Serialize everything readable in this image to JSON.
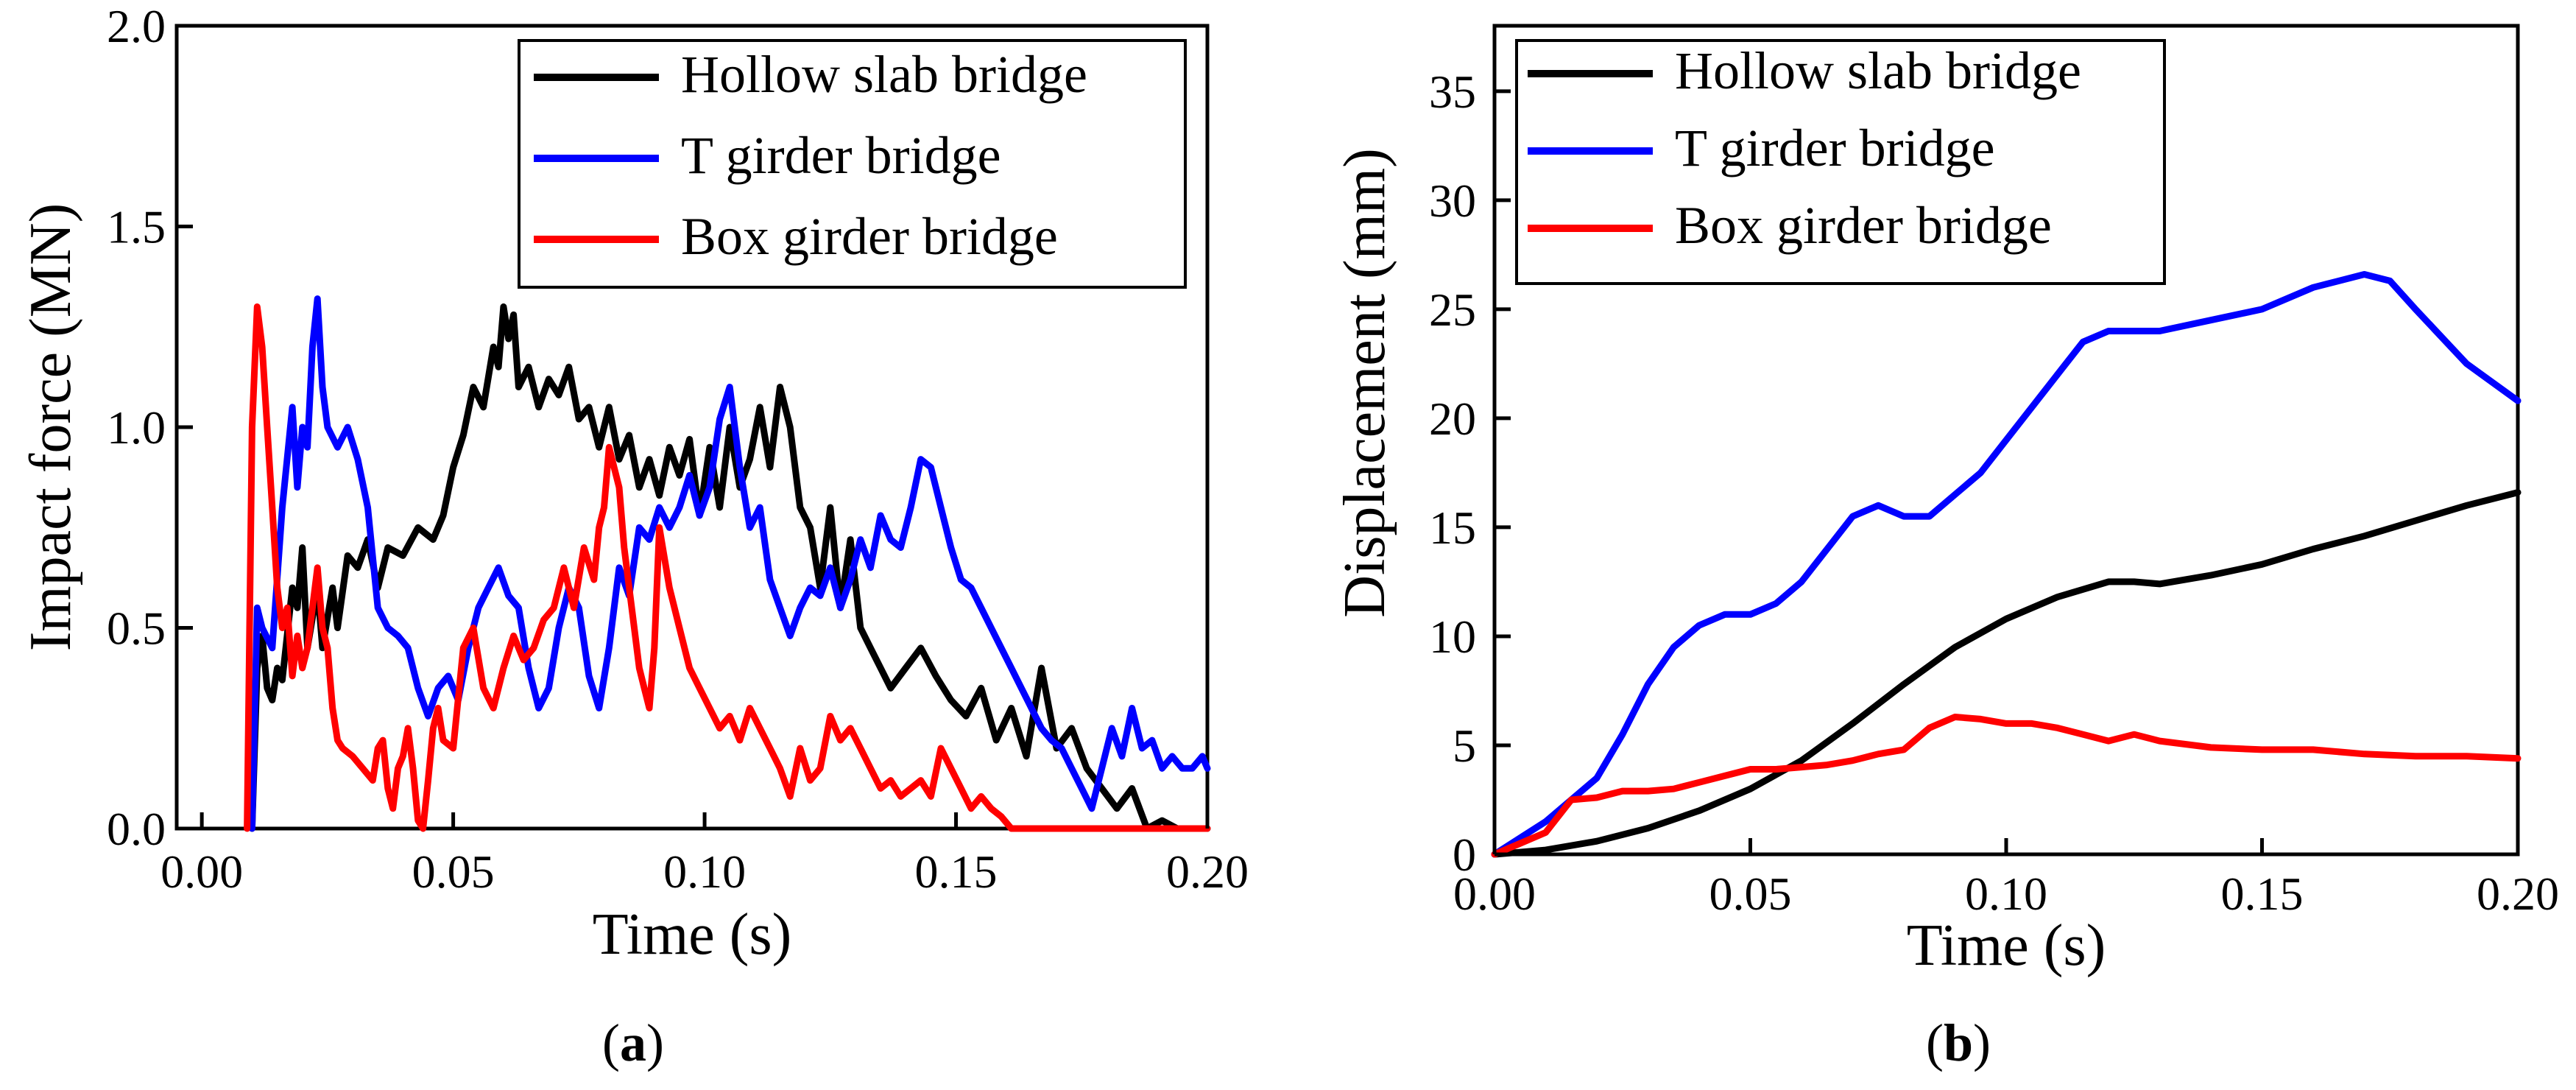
{
  "chart_data": [
    {
      "type": "line",
      "panel_label": "a",
      "xlabel": "Time (s)",
      "ylabel": "Impact force (MN)",
      "xlim": [
        -0.005,
        0.2
      ],
      "ylim": [
        0,
        2.0
      ],
      "xticks": [
        0.0,
        0.05,
        0.1,
        0.15,
        0.2
      ],
      "xtick_labels": [
        "0.00",
        "0.05",
        "0.10",
        "0.15",
        "0.20"
      ],
      "yticks": [
        0.0,
        0.5,
        1.0,
        1.5,
        2.0
      ],
      "ytick_labels": [
        "0.0",
        "0.5",
        "1.0",
        "1.5",
        "2.0"
      ],
      "legend_position": "top-right",
      "series": [
        {
          "name": "Hollow slab bridge",
          "color": "#000000",
          "x": [
            0.01,
            0.011,
            0.012,
            0.013,
            0.014,
            0.015,
            0.016,
            0.018,
            0.019,
            0.02,
            0.021,
            0.023,
            0.024,
            0.026,
            0.027,
            0.029,
            0.031,
            0.033,
            0.035,
            0.037,
            0.04,
            0.043,
            0.046,
            0.048,
            0.05,
            0.052,
            0.054,
            0.056,
            0.058,
            0.059,
            0.06,
            0.061,
            0.062,
            0.063,
            0.065,
            0.067,
            0.069,
            0.071,
            0.073,
            0.075,
            0.077,
            0.079,
            0.081,
            0.083,
            0.085,
            0.087,
            0.089,
            0.091,
            0.093,
            0.095,
            0.097,
            0.099,
            0.101,
            0.103,
            0.105,
            0.107,
            0.109,
            0.111,
            0.113,
            0.115,
            0.117,
            0.119,
            0.121,
            0.123,
            0.125,
            0.127,
            0.129,
            0.131,
            0.133,
            0.135,
            0.137,
            0.14,
            0.143,
            0.146,
            0.149,
            0.152,
            0.155,
            0.158,
            0.161,
            0.164,
            0.167,
            0.17,
            0.173,
            0.176,
            0.179,
            0.182,
            0.185,
            0.188,
            0.191,
            0.194,
            0.197,
            0.2
          ],
          "values": [
            0.0,
            0.4,
            0.48,
            0.35,
            0.32,
            0.4,
            0.37,
            0.6,
            0.55,
            0.7,
            0.45,
            0.6,
            0.45,
            0.6,
            0.5,
            0.68,
            0.65,
            0.72,
            0.6,
            0.7,
            0.68,
            0.75,
            0.72,
            0.78,
            0.9,
            0.98,
            1.1,
            1.05,
            1.2,
            1.15,
            1.3,
            1.22,
            1.28,
            1.1,
            1.15,
            1.05,
            1.12,
            1.08,
            1.15,
            1.02,
            1.05,
            0.95,
            1.05,
            0.92,
            0.98,
            0.85,
            0.92,
            0.83,
            0.95,
            0.88,
            0.97,
            0.78,
            0.95,
            0.8,
            1.0,
            0.85,
            0.92,
            1.05,
            0.9,
            1.1,
            1.0,
            0.8,
            0.75,
            0.6,
            0.8,
            0.55,
            0.72,
            0.5,
            0.45,
            0.4,
            0.35,
            0.4,
            0.45,
            0.38,
            0.32,
            0.28,
            0.35,
            0.22,
            0.3,
            0.18,
            0.4,
            0.2,
            0.25,
            0.15,
            0.1,
            0.05,
            0.1,
            0.0,
            0.02,
            0.0,
            0.0,
            0.0
          ]
        },
        {
          "name": "T girder bridge",
          "color": "#0000ff",
          "x": [
            0.01,
            0.011,
            0.012,
            0.014,
            0.016,
            0.018,
            0.019,
            0.02,
            0.021,
            0.022,
            0.023,
            0.024,
            0.025,
            0.027,
            0.029,
            0.031,
            0.033,
            0.035,
            0.037,
            0.039,
            0.041,
            0.043,
            0.045,
            0.047,
            0.049,
            0.051,
            0.053,
            0.055,
            0.057,
            0.059,
            0.061,
            0.063,
            0.065,
            0.067,
            0.069,
            0.071,
            0.073,
            0.075,
            0.077,
            0.079,
            0.081,
            0.083,
            0.085,
            0.087,
            0.089,
            0.091,
            0.093,
            0.095,
            0.097,
            0.099,
            0.101,
            0.103,
            0.105,
            0.107,
            0.109,
            0.111,
            0.113,
            0.115,
            0.117,
            0.119,
            0.121,
            0.123,
            0.125,
            0.127,
            0.129,
            0.131,
            0.133,
            0.135,
            0.137,
            0.139,
            0.141,
            0.143,
            0.145,
            0.147,
            0.149,
            0.151,
            0.153,
            0.155,
            0.157,
            0.159,
            0.161,
            0.163,
            0.165,
            0.167,
            0.169,
            0.171,
            0.173,
            0.175,
            0.177,
            0.179,
            0.181,
            0.183,
            0.185,
            0.187,
            0.189,
            0.191,
            0.193,
            0.195,
            0.197,
            0.199,
            0.2
          ],
          "values": [
            0.0,
            0.55,
            0.5,
            0.45,
            0.8,
            1.05,
            0.85,
            1.0,
            0.95,
            1.2,
            1.32,
            1.1,
            1.0,
            0.95,
            1.0,
            0.92,
            0.8,
            0.55,
            0.5,
            0.48,
            0.45,
            0.35,
            0.28,
            0.35,
            0.38,
            0.32,
            0.45,
            0.55,
            0.6,
            0.65,
            0.58,
            0.55,
            0.4,
            0.3,
            0.35,
            0.5,
            0.6,
            0.55,
            0.38,
            0.3,
            0.45,
            0.65,
            0.58,
            0.75,
            0.72,
            0.8,
            0.75,
            0.8,
            0.88,
            0.78,
            0.85,
            1.02,
            1.1,
            0.9,
            0.75,
            0.8,
            0.62,
            0.55,
            0.48,
            0.55,
            0.6,
            0.58,
            0.65,
            0.55,
            0.62,
            0.72,
            0.65,
            0.78,
            0.72,
            0.7,
            0.8,
            0.92,
            0.9,
            0.8,
            0.7,
            0.62,
            0.6,
            0.55,
            0.5,
            0.45,
            0.4,
            0.35,
            0.3,
            0.25,
            0.22,
            0.2,
            0.15,
            0.1,
            0.05,
            0.15,
            0.25,
            0.18,
            0.3,
            0.2,
            0.22,
            0.15,
            0.18,
            0.15,
            0.15,
            0.18,
            0.15
          ]
        },
        {
          "name": "Box girder bridge",
          "color": "#ff0000",
          "x": [
            0.009,
            0.01,
            0.011,
            0.012,
            0.013,
            0.014,
            0.015,
            0.016,
            0.017,
            0.018,
            0.019,
            0.02,
            0.021,
            0.022,
            0.023,
            0.024,
            0.025,
            0.026,
            0.027,
            0.028,
            0.03,
            0.032,
            0.034,
            0.035,
            0.036,
            0.037,
            0.038,
            0.039,
            0.04,
            0.041,
            0.042,
            0.043,
            0.044,
            0.045,
            0.046,
            0.047,
            0.048,
            0.05,
            0.052,
            0.054,
            0.056,
            0.058,
            0.06,
            0.062,
            0.064,
            0.066,
            0.068,
            0.07,
            0.072,
            0.074,
            0.076,
            0.078,
            0.079,
            0.08,
            0.081,
            0.082,
            0.083,
            0.084,
            0.085,
            0.086,
            0.087,
            0.088,
            0.089,
            0.09,
            0.091,
            0.093,
            0.095,
            0.097,
            0.099,
            0.101,
            0.103,
            0.105,
            0.107,
            0.109,
            0.111,
            0.113,
            0.115,
            0.117,
            0.119,
            0.121,
            0.123,
            0.125,
            0.127,
            0.129,
            0.131,
            0.133,
            0.135,
            0.137,
            0.139,
            0.141,
            0.143,
            0.145,
            0.147,
            0.149,
            0.151,
            0.153,
            0.155,
            0.157,
            0.159,
            0.161,
            0.163,
            0.165,
            0.17,
            0.18,
            0.19,
            0.2
          ],
          "values": [
            0.0,
            1.0,
            1.3,
            1.2,
            1.0,
            0.8,
            0.6,
            0.5,
            0.55,
            0.38,
            0.48,
            0.4,
            0.45,
            0.55,
            0.65,
            0.5,
            0.45,
            0.3,
            0.22,
            0.2,
            0.18,
            0.15,
            0.12,
            0.2,
            0.22,
            0.1,
            0.05,
            0.15,
            0.18,
            0.25,
            0.15,
            0.02,
            0.0,
            0.12,
            0.25,
            0.3,
            0.22,
            0.2,
            0.45,
            0.5,
            0.35,
            0.3,
            0.4,
            0.48,
            0.42,
            0.45,
            0.52,
            0.55,
            0.65,
            0.55,
            0.7,
            0.62,
            0.75,
            0.8,
            0.95,
            0.9,
            0.85,
            0.7,
            0.6,
            0.5,
            0.4,
            0.35,
            0.3,
            0.45,
            0.75,
            0.6,
            0.5,
            0.4,
            0.35,
            0.3,
            0.25,
            0.28,
            0.22,
            0.3,
            0.25,
            0.2,
            0.15,
            0.08,
            0.2,
            0.12,
            0.15,
            0.28,
            0.22,
            0.25,
            0.2,
            0.15,
            0.1,
            0.12,
            0.08,
            0.1,
            0.12,
            0.08,
            0.2,
            0.15,
            0.1,
            0.05,
            0.08,
            0.05,
            0.03,
            0.0,
            0.0,
            0.0,
            0.0,
            0.0,
            0.0,
            0.0
          ]
        }
      ]
    },
    {
      "type": "line",
      "panel_label": "b",
      "xlabel": "Time (s)",
      "ylabel": "Displacement (mm)",
      "xlim": [
        0,
        0.2
      ],
      "ylim": [
        0,
        38
      ],
      "xticks": [
        0.0,
        0.05,
        0.1,
        0.15,
        0.2
      ],
      "xtick_labels": [
        "0.00",
        "0.05",
        "0.10",
        "0.15",
        "0.20"
      ],
      "yticks": [
        0,
        5,
        10,
        15,
        20,
        25,
        30,
        35
      ],
      "ytick_labels": [
        "0",
        "5",
        "10",
        "15",
        "20",
        "25",
        "30",
        "35"
      ],
      "legend_position": "top-right",
      "series": [
        {
          "name": "Hollow slab bridge",
          "color": "#000000",
          "x": [
            0.0,
            0.01,
            0.02,
            0.03,
            0.04,
            0.05,
            0.06,
            0.07,
            0.08,
            0.09,
            0.1,
            0.11,
            0.12,
            0.125,
            0.13,
            0.14,
            0.15,
            0.16,
            0.17,
            0.18,
            0.19,
            0.2
          ],
          "values": [
            0.0,
            0.2,
            0.6,
            1.2,
            2.0,
            3.0,
            4.3,
            6.0,
            7.8,
            9.5,
            10.8,
            11.8,
            12.5,
            12.5,
            12.4,
            12.8,
            13.3,
            14.0,
            14.6,
            15.3,
            16.0,
            16.6
          ]
        },
        {
          "name": "T girder bridge",
          "color": "#0000ff",
          "x": [
            0.0,
            0.01,
            0.02,
            0.025,
            0.03,
            0.035,
            0.04,
            0.045,
            0.05,
            0.055,
            0.06,
            0.065,
            0.07,
            0.075,
            0.08,
            0.085,
            0.09,
            0.095,
            0.1,
            0.11,
            0.115,
            0.12,
            0.125,
            0.13,
            0.14,
            0.15,
            0.16,
            0.17,
            0.175,
            0.18,
            0.19,
            0.2
          ],
          "values": [
            0.0,
            1.5,
            3.5,
            5.5,
            7.8,
            9.5,
            10.5,
            11.0,
            11.0,
            11.5,
            12.5,
            14.0,
            15.5,
            16.0,
            15.5,
            15.5,
            16.5,
            17.5,
            19.0,
            22.0,
            23.5,
            24.0,
            24.0,
            24.0,
            24.5,
            25.0,
            26.0,
            26.6,
            26.3,
            25.0,
            22.5,
            20.8
          ]
        },
        {
          "name": "Box girder bridge",
          "color": "#ff0000",
          "x": [
            0.0,
            0.005,
            0.01,
            0.015,
            0.02,
            0.025,
            0.03,
            0.035,
            0.04,
            0.045,
            0.05,
            0.055,
            0.06,
            0.065,
            0.07,
            0.075,
            0.08,
            0.085,
            0.09,
            0.095,
            0.1,
            0.105,
            0.11,
            0.115,
            0.12,
            0.125,
            0.13,
            0.14,
            0.15,
            0.16,
            0.17,
            0.18,
            0.19,
            0.2
          ],
          "values": [
            0.0,
            0.5,
            1.0,
            2.5,
            2.6,
            2.9,
            2.9,
            3.0,
            3.3,
            3.6,
            3.9,
            3.9,
            4.0,
            4.1,
            4.3,
            4.6,
            4.8,
            5.8,
            6.3,
            6.2,
            6.0,
            6.0,
            5.8,
            5.5,
            5.2,
            5.5,
            5.2,
            4.9,
            4.8,
            4.8,
            4.6,
            4.5,
            4.5,
            4.4
          ]
        }
      ]
    }
  ]
}
